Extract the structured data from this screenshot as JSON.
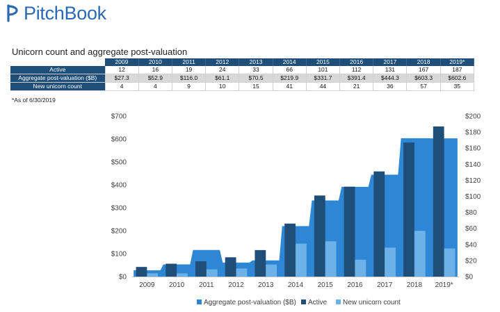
{
  "brand": {
    "name": "PitchBook",
    "color": "#2a6ab5"
  },
  "title": "Unicorn count and aggregate post-valuation",
  "note": "*As of 6/30/2019",
  "table": {
    "years": [
      "2009",
      "2010",
      "2011",
      "2012",
      "2013",
      "2014",
      "2015",
      "2016",
      "2017",
      "2018",
      "2019*"
    ],
    "rows": [
      {
        "label": "Active",
        "values": [
          "12",
          "16",
          "19",
          "24",
          "33",
          "66",
          "101",
          "112",
          "131",
          "167",
          "187"
        ]
      },
      {
        "label": "Aggregate post-valuation ($B)",
        "values": [
          "$27.3",
          "$52.9",
          "$116.0",
          "$61.1",
          "$70.5",
          "$219.9",
          "$331.7",
          "$391.4",
          "$444.3",
          "$603.3",
          "$602.6"
        ]
      },
      {
        "label": "New unicorn count",
        "values": [
          "4",
          "4",
          "9",
          "10",
          "15",
          "41",
          "44",
          "21",
          "36",
          "57",
          "35"
        ]
      }
    ]
  },
  "chart_data": {
    "type": "bar",
    "categories": [
      "2009",
      "2010",
      "2011",
      "2012",
      "2013",
      "2014",
      "2015",
      "2016",
      "2017",
      "2018",
      "2019*"
    ],
    "series": [
      {
        "name": "Aggregate post-valuation ($B)",
        "kind": "area",
        "axis": "left",
        "color": "#2e87d4",
        "values": [
          27.3,
          52.9,
          116.0,
          61.1,
          70.5,
          219.9,
          331.7,
          391.4,
          444.3,
          603.3,
          602.6
        ]
      },
      {
        "name": "Active",
        "kind": "bar",
        "axis": "right",
        "color": "#1f4e79",
        "values": [
          12,
          16,
          19,
          24,
          33,
          66,
          101,
          112,
          131,
          167,
          187
        ]
      },
      {
        "name": "New unicorn count",
        "kind": "bar",
        "axis": "right",
        "color": "#6cb2e8",
        "values": [
          4,
          4,
          9,
          10,
          15,
          41,
          44,
          21,
          36,
          57,
          35
        ]
      }
    ],
    "y_left": {
      "min": 0,
      "max": 700,
      "step": 100,
      "tick_labels": [
        "$0",
        "$100",
        "$200",
        "$300",
        "$400",
        "$500",
        "$600",
        "$700"
      ]
    },
    "y_right": {
      "min": 0,
      "max": 200,
      "step": 20,
      "tick_labels": [
        "$0",
        "$20",
        "$40",
        "$60",
        "$80",
        "$100",
        "$120",
        "$140",
        "$160",
        "$180",
        "$200"
      ]
    },
    "grid": false,
    "legend_position": "bottom"
  }
}
